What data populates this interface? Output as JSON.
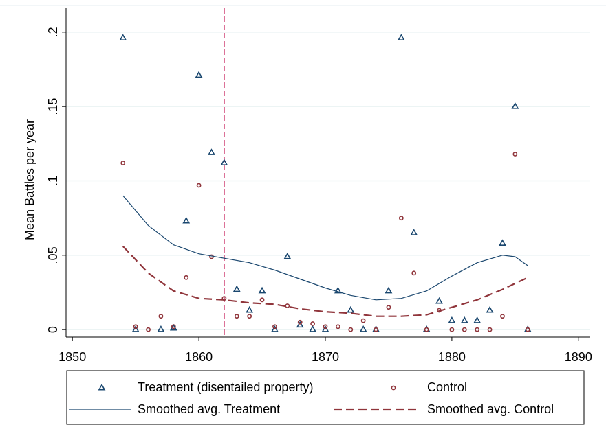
{
  "chart_data": {
    "type": "scatter",
    "ylabel": "Mean Battles per year",
    "xlim": [
      1849.5,
      1890.5
    ],
    "xticks": [
      1850,
      1860,
      1870,
      1880,
      1890
    ],
    "ylim": [
      -0.005,
      0.205
    ],
    "yticks": [
      0,
      {
        "value": 0.05,
        "label": ".05"
      },
      {
        "value": 0.1,
        "label": ".1"
      },
      {
        "value": 0.15,
        "label": ".15"
      },
      {
        "value": 0.2,
        "label": ".2"
      }
    ],
    "grid": true,
    "vline": {
      "x": 1862,
      "color": "#c81e5a"
    },
    "series": [
      {
        "name": "Treatment (disentailed property)",
        "color": "#1a476f",
        "kind": "marker",
        "marker": "triangle",
        "x": [
          1854,
          1855,
          1857,
          1858,
          1859,
          1860,
          1861,
          1862,
          1863,
          1864,
          1865,
          1866,
          1867,
          1868,
          1869,
          1870,
          1871,
          1872,
          1873,
          1874,
          1875,
          1876,
          1877,
          1878,
          1879,
          1880,
          1881,
          1882,
          1883,
          1884,
          1885,
          1886
        ],
        "values": [
          0.196,
          0,
          0,
          0.001,
          0.073,
          0.171,
          0.119,
          0.112,
          0.027,
          0.013,
          0.026,
          0,
          0.049,
          0.003,
          0,
          0,
          0.026,
          0.013,
          0,
          0,
          0.026,
          0.196,
          0.065,
          0,
          0.019,
          0.006,
          0.006,
          0.006,
          0.013,
          0.058,
          0.15,
          0
        ]
      },
      {
        "name": "Control",
        "color": "#90353b",
        "kind": "marker",
        "marker": "circle",
        "x": [
          1854,
          1855,
          1856,
          1857,
          1858,
          1859,
          1860,
          1861,
          1862,
          1863,
          1864,
          1865,
          1866,
          1867,
          1868,
          1869,
          1870,
          1871,
          1872,
          1873,
          1874,
          1875,
          1876,
          1877,
          1878,
          1879,
          1880,
          1881,
          1882,
          1883,
          1884,
          1885,
          1886
        ],
        "values": [
          0.112,
          0.002,
          0,
          0.009,
          0.002,
          0.035,
          0.097,
          0.049,
          0.021,
          0.009,
          0.009,
          0.02,
          0.002,
          0.016,
          0.005,
          0.004,
          0.002,
          0.002,
          0,
          0.006,
          0,
          0.015,
          0.075,
          0.038,
          0,
          0.013,
          0,
          0,
          0,
          0,
          0.009,
          0.118,
          0
        ]
      },
      {
        "name": "Smoothed avg. Treatment",
        "color": "#1a476f",
        "kind": "line",
        "dash": false,
        "x": [
          1854,
          1856,
          1858,
          1860,
          1862,
          1864,
          1866,
          1868,
          1870,
          1872,
          1874,
          1876,
          1878,
          1880,
          1882,
          1884,
          1885,
          1886
        ],
        "values": [
          0.09,
          0.07,
          0.057,
          0.051,
          0.048,
          0.045,
          0.04,
          0.034,
          0.028,
          0.023,
          0.02,
          0.021,
          0.026,
          0.036,
          0.045,
          0.05,
          0.049,
          0.043
        ]
      },
      {
        "name": "Smoothed avg. Control",
        "color": "#90353b",
        "kind": "line",
        "dash": true,
        "x": [
          1854,
          1856,
          1858,
          1860,
          1862,
          1864,
          1866,
          1868,
          1870,
          1872,
          1874,
          1876,
          1878,
          1880,
          1882,
          1884,
          1886
        ],
        "values": [
          0.056,
          0.038,
          0.026,
          0.021,
          0.02,
          0.018,
          0.017,
          0.014,
          0.012,
          0.011,
          0.009,
          0.009,
          0.01,
          0.015,
          0.02,
          0.027,
          0.035
        ]
      }
    ]
  }
}
